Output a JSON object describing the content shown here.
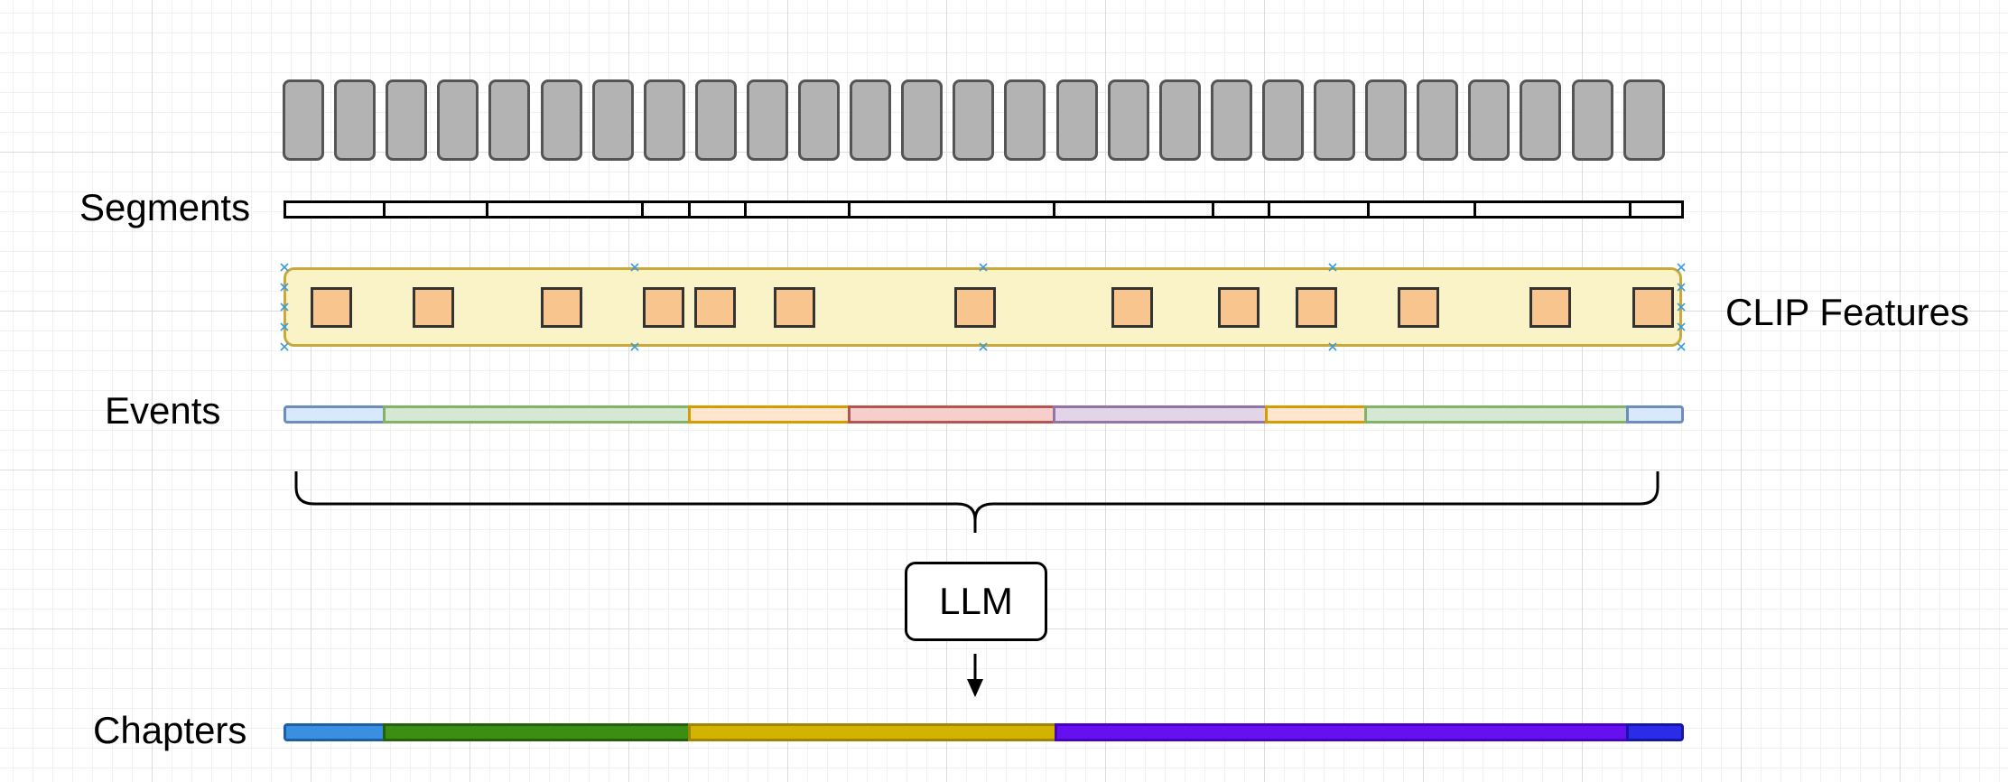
{
  "labels": {
    "segments": "Segments",
    "clip_features": "CLIP Features",
    "events": "Events",
    "chapters": "Chapters",
    "llm": "LLM"
  },
  "frame_count": 27,
  "segments": {
    "count": 13
  },
  "clip_features": {
    "count": 13
  },
  "events": [
    {
      "name": "event-1",
      "fill": "#dae8fc",
      "stroke": "#6c8ebf"
    },
    {
      "name": "event-2",
      "fill": "#d5e8d4",
      "stroke": "#82b366"
    },
    {
      "name": "event-3",
      "fill": "#ffe6cc",
      "stroke": "#d79b00"
    },
    {
      "name": "event-4",
      "fill": "#f8cecc",
      "stroke": "#b85450"
    },
    {
      "name": "event-5",
      "fill": "#e1d5e7",
      "stroke": "#9673a6"
    },
    {
      "name": "event-6",
      "fill": "#ffe6cc",
      "stroke": "#d79b00"
    },
    {
      "name": "event-7",
      "fill": "#d5e8d4",
      "stroke": "#82b366"
    },
    {
      "name": "event-8",
      "fill": "#dae8fc",
      "stroke": "#6c8ebf"
    }
  ],
  "chapters": [
    {
      "name": "chapter-1",
      "fill": "#3a8fe0",
      "stroke": "#1b5fa3"
    },
    {
      "name": "chapter-2",
      "fill": "#3c8e12",
      "stroke": "#23600a"
    },
    {
      "name": "chapter-3",
      "fill": "#d2b400",
      "stroke": "#a08600"
    },
    {
      "name": "chapter-4",
      "fill": "#6610f2",
      "stroke": "#4a00c0"
    },
    {
      "name": "chapter-5",
      "fill": "#2b2be8",
      "stroke": "#1515a8"
    }
  ]
}
